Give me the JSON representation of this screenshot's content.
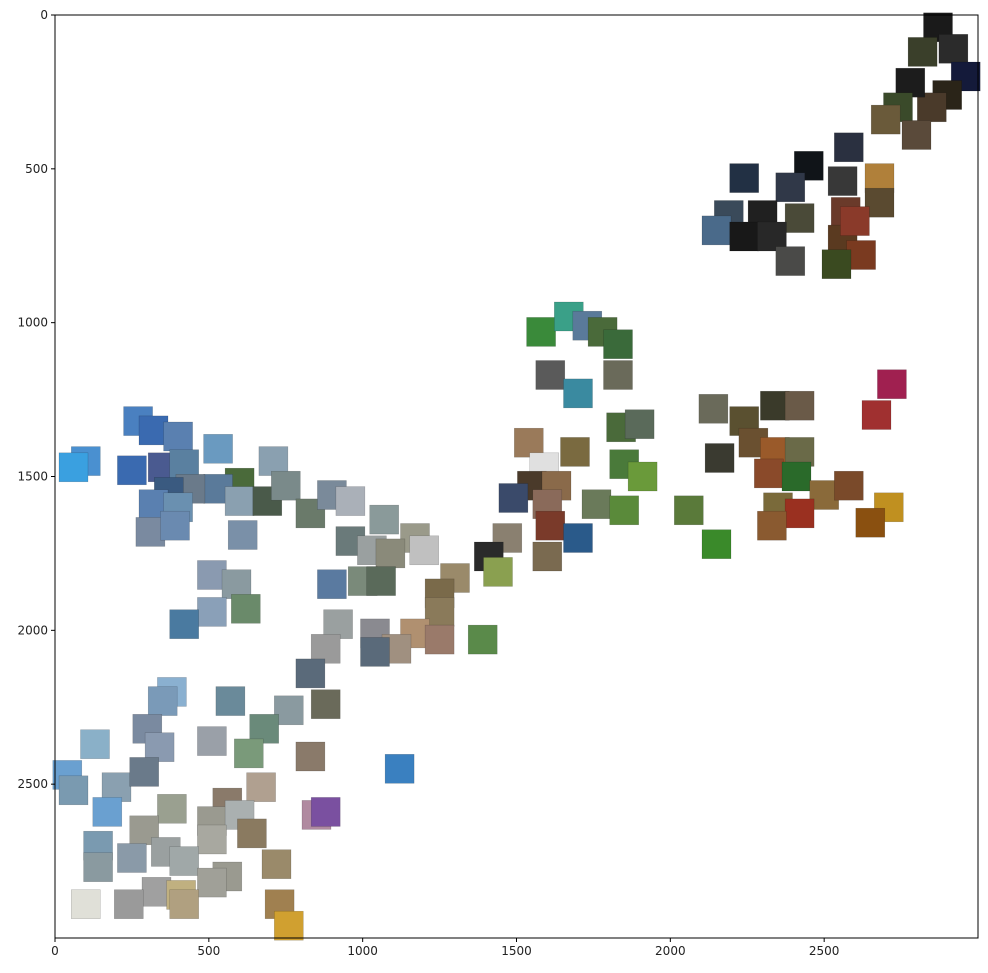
{
  "chart_data": {
    "type": "scatter",
    "title": "",
    "xlabel": "",
    "ylabel": "",
    "xlim": [
      0,
      3000
    ],
    "ylim": [
      3000,
      0
    ],
    "y_inverted": true,
    "grid": false,
    "legend": "none",
    "xticks": [
      "0",
      "500",
      "1000",
      "1500",
      "2000",
      "2500"
    ],
    "yticks": [
      "0",
      "500",
      "1000",
      "1500",
      "2000",
      "2500"
    ],
    "marker": "image-thumbnail",
    "points": [
      {
        "x": 2870,
        "y": 40,
        "color": "#1a1a1a"
      },
      {
        "x": 2920,
        "y": 110,
        "color": "#2b2b2b"
      },
      {
        "x": 2820,
        "y": 120,
        "color": "#3a3f2a"
      },
      {
        "x": 2960,
        "y": 200,
        "color": "#141a3a"
      },
      {
        "x": 2900,
        "y": 260,
        "color": "#2a2418"
      },
      {
        "x": 2850,
        "y": 300,
        "color": "#4a3a2a"
      },
      {
        "x": 2780,
        "y": 220,
        "color": "#1c1c1c"
      },
      {
        "x": 2740,
        "y": 300,
        "color": "#3a4a2a"
      },
      {
        "x": 2800,
        "y": 390,
        "color": "#5a4a3a"
      },
      {
        "x": 2700,
        "y": 340,
        "color": "#6a5a3a"
      },
      {
        "x": 2580,
        "y": 430,
        "color": "#2a3040"
      },
      {
        "x": 2450,
        "y": 490,
        "color": "#101418"
      },
      {
        "x": 2240,
        "y": 530,
        "color": "#223044"
      },
      {
        "x": 2390,
        "y": 560,
        "color": "#303848"
      },
      {
        "x": 2560,
        "y": 540,
        "color": "#383838"
      },
      {
        "x": 2680,
        "y": 530,
        "color": "#b0803a"
      },
      {
        "x": 2680,
        "y": 610,
        "color": "#5a4a30"
      },
      {
        "x": 2190,
        "y": 650,
        "color": "#3a4a5a"
      },
      {
        "x": 2300,
        "y": 650,
        "color": "#202020"
      },
      {
        "x": 2420,
        "y": 660,
        "color": "#4a4a38"
      },
      {
        "x": 2570,
        "y": 640,
        "color": "#6a3a2a"
      },
      {
        "x": 2150,
        "y": 700,
        "color": "#4a6a8a"
      },
      {
        "x": 2240,
        "y": 720,
        "color": "#181818"
      },
      {
        "x": 2330,
        "y": 720,
        "color": "#282828"
      },
      {
        "x": 2560,
        "y": 730,
        "color": "#5a3a20"
      },
      {
        "x": 2620,
        "y": 780,
        "color": "#7a3a20"
      },
      {
        "x": 2540,
        "y": 810,
        "color": "#3a4a20"
      },
      {
        "x": 2390,
        "y": 800,
        "color": "#4a4a48"
      },
      {
        "x": 2600,
        "y": 670,
        "color": "#8a3a2a"
      },
      {
        "x": 1580,
        "y": 1030,
        "color": "#3a8a3a"
      },
      {
        "x": 1670,
        "y": 980,
        "color": "#3aa088"
      },
      {
        "x": 1730,
        "y": 1010,
        "color": "#5a7a9a"
      },
      {
        "x": 1780,
        "y": 1030,
        "color": "#4a6a3a"
      },
      {
        "x": 1830,
        "y": 1070,
        "color": "#3a6a3a"
      },
      {
        "x": 1610,
        "y": 1170,
        "color": "#5a5a5a"
      },
      {
        "x": 1700,
        "y": 1230,
        "color": "#3a8aa0"
      },
      {
        "x": 1830,
        "y": 1170,
        "color": "#6a6a5a"
      },
      {
        "x": 1840,
        "y": 1340,
        "color": "#4a6a3a"
      },
      {
        "x": 1900,
        "y": 1330,
        "color": "#5a6a5a"
      },
      {
        "x": 1540,
        "y": 1390,
        "color": "#9a7a5a"
      },
      {
        "x": 1690,
        "y": 1420,
        "color": "#7a6a40"
      },
      {
        "x": 1590,
        "y": 1470,
        "color": "#e0e0e0"
      },
      {
        "x": 1850,
        "y": 1460,
        "color": "#4a7a3a"
      },
      {
        "x": 1910,
        "y": 1500,
        "color": "#6a9a3a"
      },
      {
        "x": 1550,
        "y": 1530,
        "color": "#4a3a2a"
      },
      {
        "x": 1630,
        "y": 1530,
        "color": "#8a6a4a"
      },
      {
        "x": 1490,
        "y": 1570,
        "color": "#3a4a6a"
      },
      {
        "x": 1600,
        "y": 1590,
        "color": "#8a6a5a"
      },
      {
        "x": 1760,
        "y": 1590,
        "color": "#6a7a5a"
      },
      {
        "x": 1850,
        "y": 1610,
        "color": "#5a8a3a"
      },
      {
        "x": 1610,
        "y": 1660,
        "color": "#7a3a2a"
      },
      {
        "x": 1700,
        "y": 1700,
        "color": "#2a5a8a"
      },
      {
        "x": 1470,
        "y": 1700,
        "color": "#8a8070"
      },
      {
        "x": 1600,
        "y": 1760,
        "color": "#7a6a50"
      },
      {
        "x": 1410,
        "y": 1760,
        "color": "#2a2a2a"
      },
      {
        "x": 1440,
        "y": 1810,
        "color": "#8aa050"
      },
      {
        "x": 2140,
        "y": 1280,
        "color": "#6a6a5a"
      },
      {
        "x": 2240,
        "y": 1320,
        "color": "#5a5030"
      },
      {
        "x": 2340,
        "y": 1270,
        "color": "#3a3a2a"
      },
      {
        "x": 2420,
        "y": 1270,
        "color": "#6a5a48"
      },
      {
        "x": 2270,
        "y": 1390,
        "color": "#6a5030"
      },
      {
        "x": 2340,
        "y": 1420,
        "color": "#9a5a2a"
      },
      {
        "x": 2420,
        "y": 1420,
        "color": "#6a6a48"
      },
      {
        "x": 2160,
        "y": 1440,
        "color": "#3a3a30"
      },
      {
        "x": 2320,
        "y": 1490,
        "color": "#8a4a2a"
      },
      {
        "x": 2410,
        "y": 1500,
        "color": "#2a6a2a"
      },
      {
        "x": 2500,
        "y": 1560,
        "color": "#8a6a3a"
      },
      {
        "x": 2580,
        "y": 1530,
        "color": "#7a4a2a"
      },
      {
        "x": 2350,
        "y": 1600,
        "color": "#7a6a3a"
      },
      {
        "x": 2420,
        "y": 1620,
        "color": "#9a3020"
      },
      {
        "x": 2330,
        "y": 1660,
        "color": "#8a5a30"
      },
      {
        "x": 2060,
        "y": 1610,
        "color": "#5a7a3a"
      },
      {
        "x": 2150,
        "y": 1720,
        "color": "#3a8a2a"
      },
      {
        "x": 2720,
        "y": 1200,
        "color": "#a02050"
      },
      {
        "x": 2670,
        "y": 1300,
        "color": "#a03030"
      },
      {
        "x": 2710,
        "y": 1600,
        "color": "#c09020"
      },
      {
        "x": 2650,
        "y": 1650,
        "color": "#8a5010"
      },
      {
        "x": 270,
        "y": 1320,
        "color": "#4a80c0"
      },
      {
        "x": 320,
        "y": 1350,
        "color": "#3a6ab0"
      },
      {
        "x": 400,
        "y": 1370,
        "color": "#5a80b0"
      },
      {
        "x": 530,
        "y": 1410,
        "color": "#6a9ac0"
      },
      {
        "x": 100,
        "y": 1450,
        "color": "#4a90d0"
      },
      {
        "x": 60,
        "y": 1470,
        "color": "#3aa0e0"
      },
      {
        "x": 250,
        "y": 1480,
        "color": "#3a6ab0"
      },
      {
        "x": 350,
        "y": 1470,
        "color": "#4a5a90"
      },
      {
        "x": 420,
        "y": 1460,
        "color": "#5a80a0"
      },
      {
        "x": 710,
        "y": 1450,
        "color": "#8aa0b0"
      },
      {
        "x": 600,
        "y": 1520,
        "color": "#4a6a3a"
      },
      {
        "x": 530,
        "y": 1540,
        "color": "#5a7a9a"
      },
      {
        "x": 440,
        "y": 1540,
        "color": "#6a7a8a"
      },
      {
        "x": 370,
        "y": 1550,
        "color": "#3a5a80"
      },
      {
        "x": 320,
        "y": 1590,
        "color": "#5a80b0"
      },
      {
        "x": 400,
        "y": 1600,
        "color": "#6a90b0"
      },
      {
        "x": 600,
        "y": 1580,
        "color": "#8aa0b0"
      },
      {
        "x": 690,
        "y": 1580,
        "color": "#4a5a4a"
      },
      {
        "x": 750,
        "y": 1530,
        "color": "#7a8a8a"
      },
      {
        "x": 830,
        "y": 1620,
        "color": "#6a7a6a"
      },
      {
        "x": 900,
        "y": 1560,
        "color": "#7a8a9a"
      },
      {
        "x": 960,
        "y": 1580,
        "color": "#aab0b8"
      },
      {
        "x": 310,
        "y": 1680,
        "color": "#7a8aa0"
      },
      {
        "x": 390,
        "y": 1660,
        "color": "#6a8ab0"
      },
      {
        "x": 610,
        "y": 1690,
        "color": "#7a90a8"
      },
      {
        "x": 1070,
        "y": 1640,
        "color": "#8a9a9a"
      },
      {
        "x": 960,
        "y": 1710,
        "color": "#6a7a7a"
      },
      {
        "x": 1170,
        "y": 1700,
        "color": "#9a9a8a"
      },
      {
        "x": 1030,
        "y": 1740,
        "color": "#9aa0a0"
      },
      {
        "x": 1090,
        "y": 1750,
        "color": "#8a8a7a"
      },
      {
        "x": 1200,
        "y": 1740,
        "color": "#c0c0c0"
      },
      {
        "x": 510,
        "y": 1820,
        "color": "#8a9ab0"
      },
      {
        "x": 590,
        "y": 1850,
        "color": "#8a9aa0"
      },
      {
        "x": 900,
        "y": 1850,
        "color": "#5a7aa0"
      },
      {
        "x": 1000,
        "y": 1840,
        "color": "#7a8a7a"
      },
      {
        "x": 1060,
        "y": 1840,
        "color": "#5a6a5a"
      },
      {
        "x": 1300,
        "y": 1830,
        "color": "#9a8a6a"
      },
      {
        "x": 1250,
        "y": 1880,
        "color": "#7a6a4a"
      },
      {
        "x": 510,
        "y": 1940,
        "color": "#8aa0b8"
      },
      {
        "x": 620,
        "y": 1930,
        "color": "#6a8a6a"
      },
      {
        "x": 420,
        "y": 1980,
        "color": "#4a7aa0"
      },
      {
        "x": 920,
        "y": 1980,
        "color": "#9aa0a0"
      },
      {
        "x": 1250,
        "y": 1940,
        "color": "#8a7a5a"
      },
      {
        "x": 1040,
        "y": 2010,
        "color": "#8a8a90"
      },
      {
        "x": 1170,
        "y": 2010,
        "color": "#b09070"
      },
      {
        "x": 1250,
        "y": 2030,
        "color": "#9a7a6a"
      },
      {
        "x": 1110,
        "y": 2060,
        "color": "#a09080"
      },
      {
        "x": 880,
        "y": 2060,
        "color": "#9a9a9a"
      },
      {
        "x": 1040,
        "y": 2070,
        "color": "#5a6a7a"
      },
      {
        "x": 1390,
        "y": 2030,
        "color": "#5a8a4a"
      },
      {
        "x": 830,
        "y": 2140,
        "color": "#5a6a7a"
      },
      {
        "x": 880,
        "y": 2240,
        "color": "#6a6a5a"
      },
      {
        "x": 380,
        "y": 2200,
        "color": "#8ab0d0"
      },
      {
        "x": 350,
        "y": 2230,
        "color": "#7a9ab8"
      },
      {
        "x": 570,
        "y": 2230,
        "color": "#6a8a9a"
      },
      {
        "x": 760,
        "y": 2260,
        "color": "#8a9aa0"
      },
      {
        "x": 680,
        "y": 2320,
        "color": "#6a8a7a"
      },
      {
        "x": 300,
        "y": 2320,
        "color": "#7a8aa0"
      },
      {
        "x": 130,
        "y": 2370,
        "color": "#8ab0c8"
      },
      {
        "x": 340,
        "y": 2380,
        "color": "#8a9ab0"
      },
      {
        "x": 510,
        "y": 2360,
        "color": "#9aa0a8"
      },
      {
        "x": 630,
        "y": 2400,
        "color": "#7a9a7a"
      },
      {
        "x": 830,
        "y": 2410,
        "color": "#8a7a6a"
      },
      {
        "x": 40,
        "y": 2470,
        "color": "#6aa0d0"
      },
      {
        "x": 60,
        "y": 2520,
        "color": "#7a9ab0"
      },
      {
        "x": 200,
        "y": 2510,
        "color": "#8aa0b0"
      },
      {
        "x": 290,
        "y": 2460,
        "color": "#6a7a8a"
      },
      {
        "x": 670,
        "y": 2510,
        "color": "#b0a090"
      },
      {
        "x": 560,
        "y": 2560,
        "color": "#8a7a6a"
      },
      {
        "x": 170,
        "y": 2590,
        "color": "#6aa0d0"
      },
      {
        "x": 380,
        "y": 2580,
        "color": "#9aa090"
      },
      {
        "x": 850,
        "y": 2600,
        "color": "#b08aa0"
      },
      {
        "x": 880,
        "y": 2590,
        "color": "#7a50a0"
      },
      {
        "x": 290,
        "y": 2650,
        "color": "#9a9a90"
      },
      {
        "x": 510,
        "y": 2620,
        "color": "#9a9a90"
      },
      {
        "x": 600,
        "y": 2600,
        "color": "#aab0b0"
      },
      {
        "x": 640,
        "y": 2660,
        "color": "#8a7a60"
      },
      {
        "x": 510,
        "y": 2680,
        "color": "#a8a8a0"
      },
      {
        "x": 140,
        "y": 2700,
        "color": "#7a9ab0"
      },
      {
        "x": 250,
        "y": 2740,
        "color": "#8a9aa8"
      },
      {
        "x": 360,
        "y": 2720,
        "color": "#9aa0a0"
      },
      {
        "x": 420,
        "y": 2750,
        "color": "#a0a8a8"
      },
      {
        "x": 140,
        "y": 2770,
        "color": "#8a9aa0"
      },
      {
        "x": 720,
        "y": 2760,
        "color": "#9a8a6a"
      },
      {
        "x": 560,
        "y": 2800,
        "color": "#9a9a90"
      },
      {
        "x": 510,
        "y": 2820,
        "color": "#a0a098"
      },
      {
        "x": 330,
        "y": 2850,
        "color": "#a0a0a0"
      },
      {
        "x": 410,
        "y": 2860,
        "color": "#c0b080"
      },
      {
        "x": 240,
        "y": 2890,
        "color": "#9a9a9a"
      },
      {
        "x": 100,
        "y": 2890,
        "color": "#e0e0d8"
      },
      {
        "x": 420,
        "y": 2890,
        "color": "#b0a080"
      },
      {
        "x": 730,
        "y": 2890,
        "color": "#a08050"
      },
      {
        "x": 760,
        "y": 2960,
        "color": "#d0a030"
      },
      {
        "x": 1120,
        "y": 2450,
        "color": "#3a80c0"
      }
    ]
  }
}
